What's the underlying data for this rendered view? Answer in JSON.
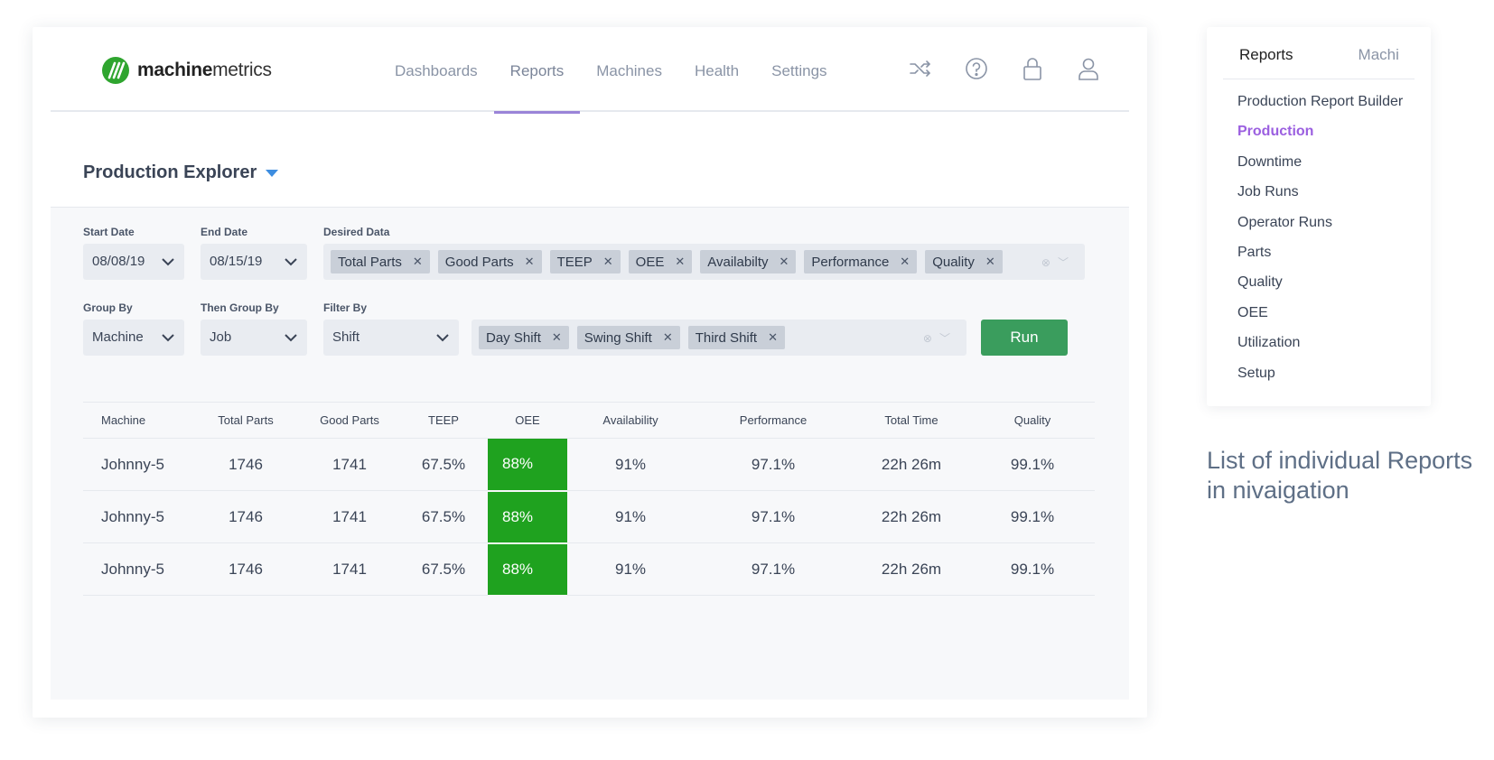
{
  "brand": {
    "name_bold": "machine",
    "name_light": "metrics",
    "color": "#2fa52f"
  },
  "nav": {
    "items": [
      {
        "label": "Dashboards",
        "active": false
      },
      {
        "label": "Reports",
        "active": true
      },
      {
        "label": "Machines",
        "active": false
      },
      {
        "label": "Health",
        "active": false
      },
      {
        "label": "Settings",
        "active": false
      }
    ],
    "icons": [
      "shuffle-icon",
      "help-icon",
      "lock-icon",
      "user-icon"
    ],
    "accent": "#9a84d8"
  },
  "page": {
    "title": "Production Explorer"
  },
  "filters": {
    "start_date": {
      "label": "Start Date",
      "value": "08/08/19"
    },
    "end_date": {
      "label": "End Date",
      "value": "08/15/19"
    },
    "desired_data": {
      "label": "Desired Data",
      "tags": [
        "Total Parts",
        "Good Parts",
        "TEEP",
        "OEE",
        "Availabilty",
        "Performance",
        "Quality"
      ]
    },
    "group_by": {
      "label": "Group By",
      "value": "Machine"
    },
    "then_group_by": {
      "label": "Then Group By",
      "value": "Job"
    },
    "filter_by": {
      "label": "Filter By",
      "value": "Shift",
      "tags": [
        "Day Shift",
        "Swing Shift",
        "Third Shift"
      ]
    },
    "run_label": "Run",
    "run_color": "#3a9d5d"
  },
  "table": {
    "columns": [
      "Machine",
      "Total Parts",
      "Good Parts",
      "TEEP",
      "OEE",
      "Availability",
      "Performance",
      "Total Time",
      "Quality"
    ],
    "rows": [
      [
        "Johnny-5",
        "1746",
        "1741",
        "67.5%",
        "88%",
        "91%",
        "97.1%",
        "22h 26m",
        "99.1%"
      ],
      [
        "Johnny-5",
        "1746",
        "1741",
        "67.5%",
        "88%",
        "91%",
        "97.1%",
        "22h 26m",
        "99.1%"
      ],
      [
        "Johnny-5",
        "1746",
        "1741",
        "67.5%",
        "88%",
        "91%",
        "97.1%",
        "22h 26m",
        "99.1%"
      ]
    ],
    "oee_color": "#1fa21f"
  },
  "sidebar": {
    "tabs": [
      {
        "label": "Reports",
        "active": true
      },
      {
        "label": "Machi",
        "active": false
      }
    ],
    "items": [
      {
        "label": "Production Report Builder",
        "active": false
      },
      {
        "label": "Production",
        "active": true
      },
      {
        "label": "Downtime",
        "active": false
      },
      {
        "label": "Job Runs",
        "active": false
      },
      {
        "label": "Operator Runs",
        "active": false
      },
      {
        "label": "Parts",
        "active": false
      },
      {
        "label": "Quality",
        "active": false
      },
      {
        "label": "OEE",
        "active": false
      },
      {
        "label": "Utilization",
        "active": false
      },
      {
        "label": "Setup",
        "active": false
      }
    ],
    "active_color": "#9b5fe0"
  },
  "caption": {
    "line1": "List of individual Reports",
    "line2": "in nivaigation"
  }
}
